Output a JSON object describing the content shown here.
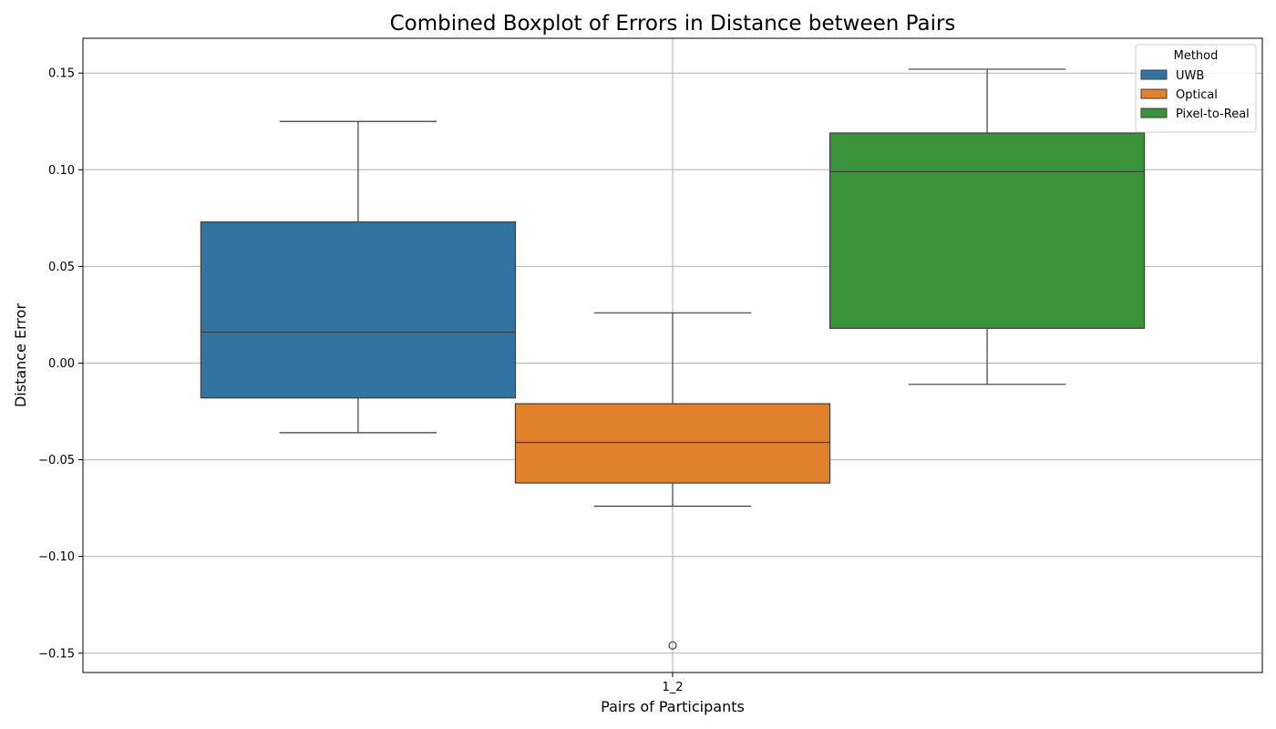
{
  "chart_data": {
    "type": "boxplot",
    "title": "Combined Boxplot of Errors in Distance between Pairs",
    "xlabel": "Pairs of Participants",
    "ylabel": "Distance Error",
    "categories": [
      "1_2"
    ],
    "ylim": [
      -0.16,
      0.168
    ],
    "yticks": [
      -0.15,
      -0.1,
      -0.05,
      0.0,
      0.05,
      0.1,
      0.15
    ],
    "ytick_labels": [
      "−0.15",
      "−0.10",
      "−0.05",
      "0.00",
      "0.05",
      "0.10",
      "0.15"
    ],
    "grid": true,
    "legend": {
      "title": "Method",
      "position": "top-right"
    },
    "series": [
      {
        "name": "UWB",
        "color": "#3274a1",
        "stats": {
          "whislo": -0.036,
          "q1": -0.018,
          "med": 0.016,
          "q3": 0.073,
          "whishi": 0.125
        },
        "outliers": []
      },
      {
        "name": "Optical",
        "color": "#e1812c",
        "stats": {
          "whislo": -0.074,
          "q1": -0.062,
          "med": -0.041,
          "q3": -0.021,
          "whishi": 0.026
        },
        "outliers": [
          -0.146
        ]
      },
      {
        "name": "Pixel-to-Real",
        "color": "#3a923a",
        "stats": {
          "whislo": -0.011,
          "q1": 0.018,
          "med": 0.099,
          "q3": 0.119,
          "whishi": 0.152
        },
        "outliers": []
      }
    ]
  }
}
